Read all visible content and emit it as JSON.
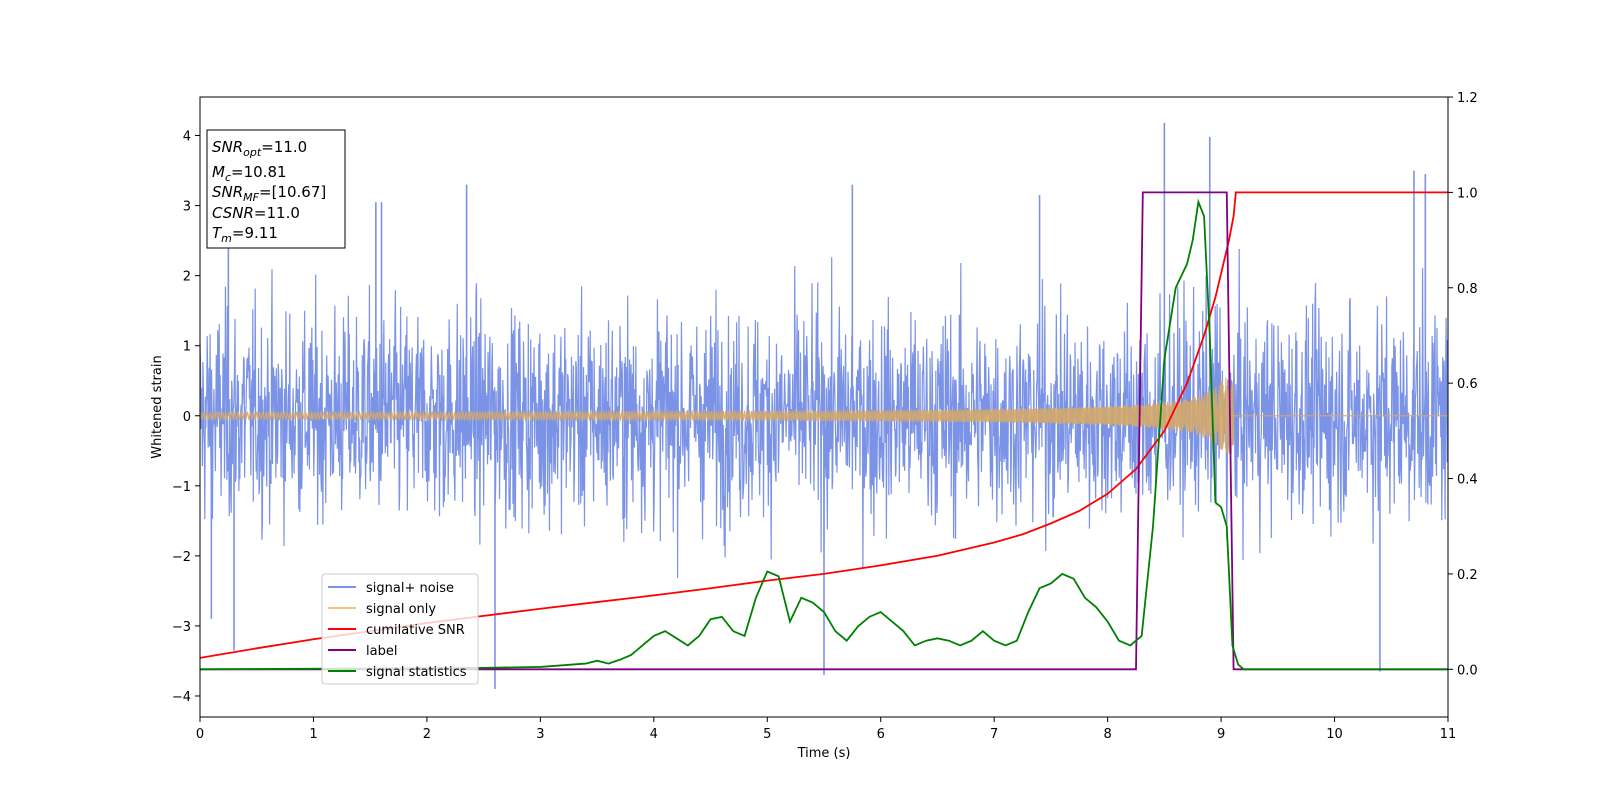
{
  "chart_data": {
    "type": "line",
    "title": "",
    "xlabel": "Time (s)",
    "ylabel": "Whitened strain",
    "xlim": [
      0,
      11
    ],
    "ylim": [
      -4.3,
      4.55
    ],
    "y2lim": [
      -0.1,
      1.2
    ],
    "x_ticks": [
      "0",
      "1",
      "2",
      "3",
      "4",
      "5",
      "6",
      "7",
      "8",
      "9",
      "10",
      "11"
    ],
    "y_ticks": [
      "−4",
      "−3",
      "−2",
      "−1",
      "0",
      "1",
      "2",
      "3",
      "4"
    ],
    "y2_ticks": [
      "0.0",
      "0.2",
      "0.4",
      "0.6",
      "0.8",
      "1.0",
      "1.2"
    ],
    "grid": false,
    "legend_position": "lower-left",
    "info_box": {
      "lines": [
        {
          "base": "SNR",
          "sub": "opt",
          "value": "=11.0"
        },
        {
          "base": "M",
          "sub": "c",
          "value": "=10.81"
        },
        {
          "base": "SNR",
          "sub": "MF",
          "value": "=[10.67]"
        },
        {
          "base": "CSNR",
          "sub": "",
          "value": "=11.0"
        },
        {
          "base": "T",
          "sub": "m",
          "value": "=9.11"
        }
      ]
    },
    "series": [
      {
        "name": "signal+ noise",
        "axis": "left",
        "color": "#7b93e6",
        "noise_std": 0.95,
        "samples": 2600,
        "spikes": [
          [
            0.25,
            2.5
          ],
          [
            0.3,
            -3.35
          ],
          [
            0.1,
            -2.9
          ],
          [
            1.55,
            3.05
          ],
          [
            1.6,
            3.05
          ],
          [
            2.35,
            3.3
          ],
          [
            2.6,
            -3.9
          ],
          [
            5.5,
            -3.7
          ],
          [
            5.75,
            3.3
          ],
          [
            7.4,
            3.15
          ],
          [
            8.5,
            4.18
          ],
          [
            8.9,
            3.98
          ],
          [
            10.4,
            -3.65
          ],
          [
            10.7,
            3.5
          ],
          [
            10.8,
            3.45
          ]
        ]
      },
      {
        "name": "signal only",
        "axis": "left",
        "color": "#f5c37a",
        "t_merge": 9.11,
        "peak_amplitude": 0.55
      },
      {
        "name": "cumilative SNR",
        "axis": "right",
        "color": "#ff0000",
        "x": [
          0,
          0.5,
          1,
          1.5,
          2,
          2.5,
          3,
          3.5,
          4,
          4.5,
          5,
          5.5,
          6,
          6.5,
          7,
          7.25,
          7.5,
          7.75,
          8,
          8.25,
          8.5,
          8.7,
          8.85,
          8.95,
          9.02,
          9.07,
          9.11,
          9.13,
          11
        ],
        "y": [
          0.024,
          0.044,
          0.063,
          0.08,
          0.097,
          0.112,
          0.127,
          0.141,
          0.155,
          0.17,
          0.186,
          0.2,
          0.218,
          0.238,
          0.266,
          0.283,
          0.306,
          0.332,
          0.368,
          0.42,
          0.5,
          0.6,
          0.7,
          0.78,
          0.85,
          0.9,
          0.95,
          1.0,
          1.0
        ]
      },
      {
        "name": "label",
        "axis": "right",
        "color": "#800080",
        "x": [
          0,
          8.25,
          8.31,
          9.05,
          9.11,
          11
        ],
        "y": [
          0,
          0,
          1,
          1,
          0,
          0
        ]
      },
      {
        "name": "signal statistics",
        "axis": "right",
        "color": "#008000",
        "x": [
          0,
          2.5,
          3,
          3.4,
          3.5,
          3.6,
          3.7,
          3.8,
          3.9,
          4.0,
          4.1,
          4.2,
          4.3,
          4.4,
          4.5,
          4.6,
          4.7,
          4.8,
          4.9,
          5.0,
          5.1,
          5.2,
          5.3,
          5.4,
          5.5,
          5.6,
          5.7,
          5.8,
          5.9,
          6.0,
          6.1,
          6.2,
          6.3,
          6.4,
          6.5,
          6.6,
          6.7,
          6.8,
          6.9,
          7.0,
          7.1,
          7.2,
          7.3,
          7.4,
          7.5,
          7.6,
          7.7,
          7.8,
          7.9,
          8.0,
          8.1,
          8.2,
          8.3,
          8.4,
          8.5,
          8.6,
          8.7,
          8.75,
          8.8,
          8.85,
          8.9,
          8.95,
          9.0,
          9.05,
          9.1,
          9.15,
          9.2,
          9.3,
          11
        ],
        "y": [
          0.0,
          0.003,
          0.005,
          0.012,
          0.018,
          0.012,
          0.02,
          0.03,
          0.05,
          0.07,
          0.08,
          0.065,
          0.05,
          0.07,
          0.105,
          0.11,
          0.08,
          0.07,
          0.15,
          0.205,
          0.195,
          0.1,
          0.15,
          0.14,
          0.12,
          0.08,
          0.06,
          0.09,
          0.11,
          0.12,
          0.1,
          0.08,
          0.05,
          0.06,
          0.065,
          0.06,
          0.05,
          0.06,
          0.08,
          0.06,
          0.05,
          0.06,
          0.12,
          0.17,
          0.18,
          0.2,
          0.19,
          0.15,
          0.13,
          0.1,
          0.06,
          0.05,
          0.07,
          0.3,
          0.65,
          0.8,
          0.85,
          0.9,
          0.98,
          0.95,
          0.7,
          0.35,
          0.34,
          0.3,
          0.05,
          0.01,
          0.0,
          0.0,
          0.0
        ]
      }
    ]
  }
}
